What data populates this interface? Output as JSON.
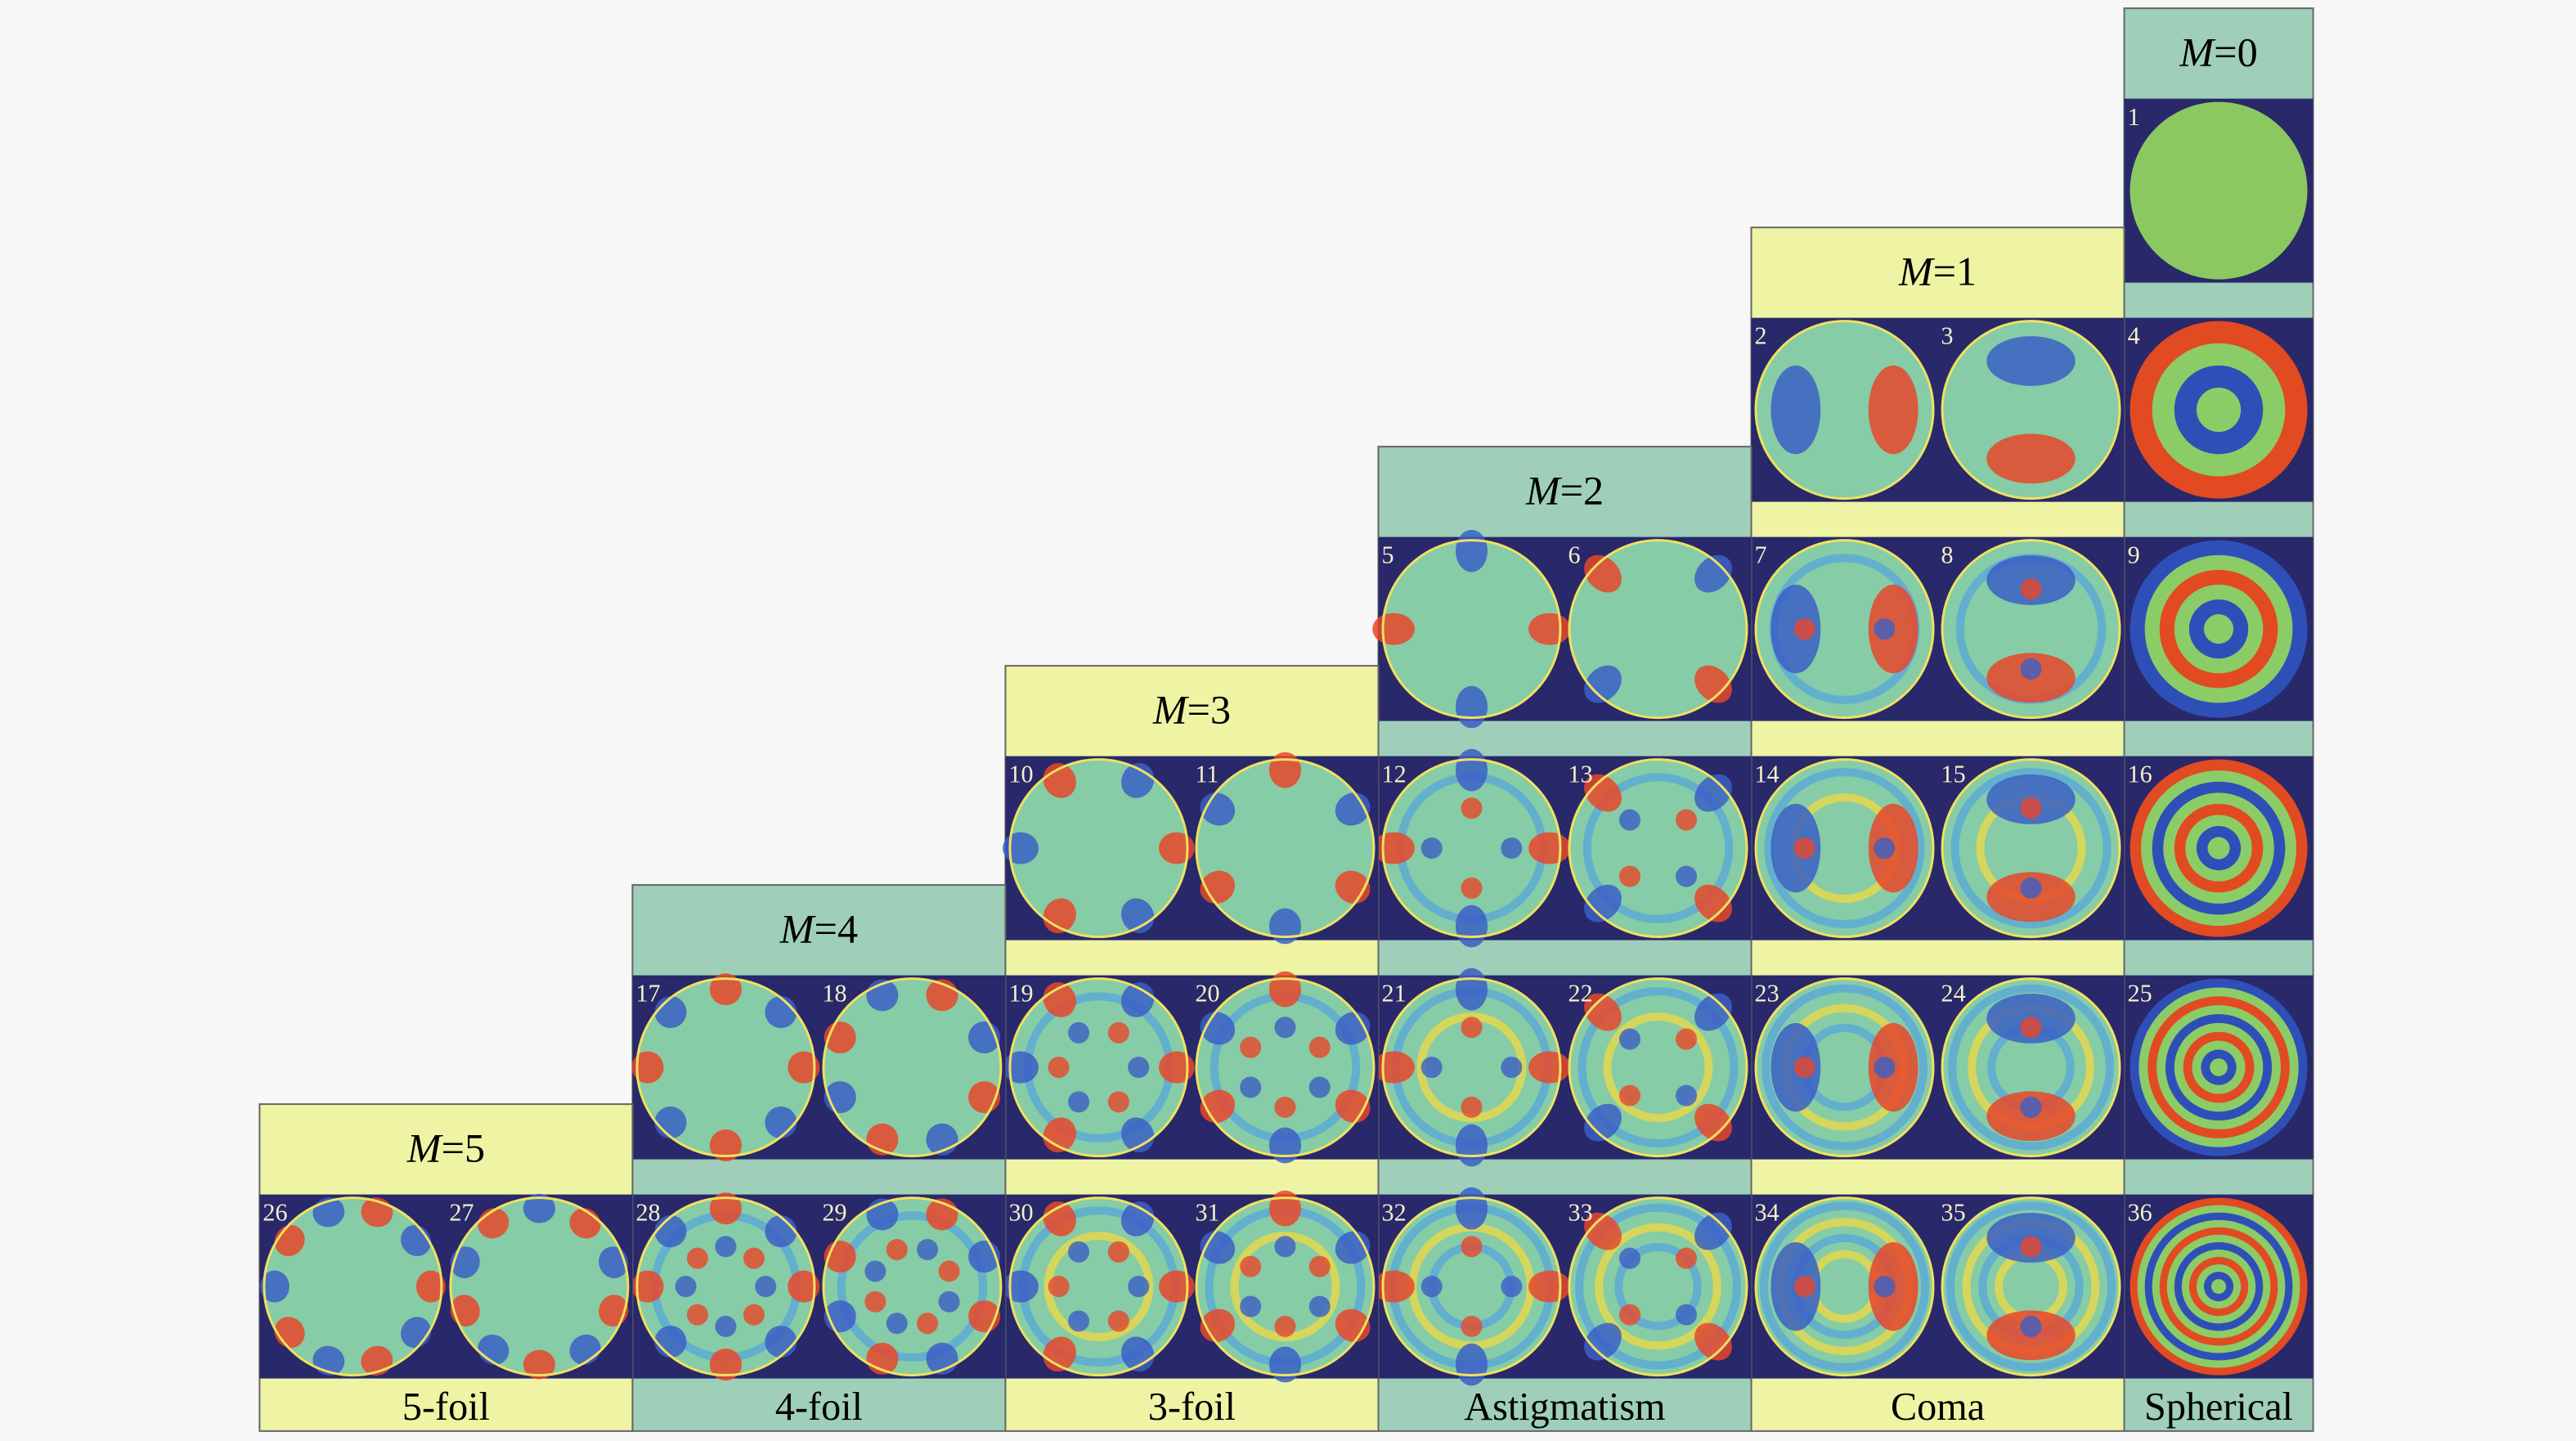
{
  "columns": [
    {
      "header": {
        "var": "M",
        "eq": "=0"
      },
      "label": "Spherical",
      "cells": [
        [
          1
        ],
        [
          4
        ],
        [
          9
        ],
        [
          16
        ],
        [
          25
        ],
        [
          36
        ]
      ]
    },
    {
      "header": {
        "var": "M",
        "eq": "=1"
      },
      "label": "Coma",
      "cells": [
        [
          2,
          3
        ],
        [
          7,
          8
        ],
        [
          14,
          15
        ],
        [
          23,
          24
        ],
        [
          34,
          35
        ]
      ]
    },
    {
      "header": {
        "var": "M",
        "eq": "=2"
      },
      "label": "Astigmatism",
      "cells": [
        [
          5,
          6
        ],
        [
          12,
          13
        ],
        [
          21,
          22
        ],
        [
          32,
          33
        ]
      ]
    },
    {
      "header": {
        "var": "M",
        "eq": "=3"
      },
      "label": "3-foil",
      "cells": [
        [
          10,
          11
        ],
        [
          19,
          20
        ],
        [
          30,
          31
        ]
      ]
    },
    {
      "header": {
        "var": "M",
        "eq": "=4"
      },
      "label": "4-foil",
      "cells": [
        [
          17,
          18
        ],
        [
          28,
          29
        ]
      ]
    },
    {
      "header": {
        "var": "M",
        "eq": "=5"
      },
      "label": "5-foil",
      "cells": [
        [
          26,
          27
        ]
      ]
    }
  ]
}
